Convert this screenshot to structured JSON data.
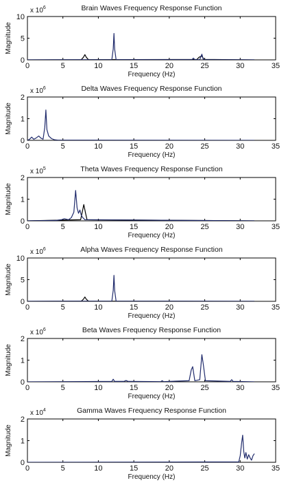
{
  "chart_data": [
    {
      "type": "line",
      "title": "Brain Waves Frequency Response Function",
      "xlabel": "Frequency (Hz)",
      "ylabel": "Magnitude",
      "exponent_base": "x 10",
      "exponent_power": "6",
      "xlim": [
        0,
        35
      ],
      "ylim": [
        0,
        10
      ],
      "xticks": [
        0,
        5,
        10,
        15,
        20,
        25,
        30,
        35
      ],
      "yticks": [
        0,
        5,
        10
      ],
      "grid": false,
      "series": [
        {
          "color": "#000000",
          "x": [
            0,
            7.6,
            7.9,
            8.1,
            8.3,
            8.6,
            23.9,
            24.2,
            24.6,
            24.9,
            32
          ],
          "y": [
            0,
            0.05,
            0.6,
            1.2,
            0.6,
            0.05,
            0.1,
            0.6,
            0.9,
            0.1,
            0
          ]
        },
        {
          "color": "#1f2a6b",
          "x": [
            0,
            11.9,
            12.1,
            12.2,
            12.3,
            12.5,
            23.2,
            23.4,
            23.6,
            24.3,
            24.6,
            24.8,
            32
          ],
          "y": [
            0,
            0.05,
            2.5,
            6.1,
            2.5,
            0.05,
            0.05,
            0.4,
            0.05,
            0.05,
            1.3,
            0.05,
            0
          ]
        }
      ]
    },
    {
      "type": "line",
      "title": "Delta Waves Frequency Response Function",
      "xlabel": "Frequency (Hz)",
      "ylabel": "Magnitude",
      "exponent_base": "x 10",
      "exponent_power": "6",
      "xlim": [
        0,
        35
      ],
      "ylim": [
        0,
        2
      ],
      "xticks": [
        0,
        5,
        10,
        15,
        20,
        25,
        30,
        35
      ],
      "yticks": [
        0,
        1,
        2
      ],
      "grid": false,
      "series": [
        {
          "color": "#1f2a6b",
          "x": [
            0,
            0.3,
            0.6,
            0.9,
            1.2,
            1.6,
            1.9,
            2.2,
            2.45,
            2.6,
            2.75,
            3.0,
            3.4,
            3.8,
            4.3,
            32
          ],
          "y": [
            0,
            0.05,
            0.15,
            0.05,
            0.1,
            0.2,
            0.1,
            0.05,
            0.6,
            1.4,
            0.5,
            0.2,
            0.08,
            0.03,
            0.01,
            0
          ]
        }
      ]
    },
    {
      "type": "line",
      "title": "Theta Waves Frequency Response Function",
      "xlabel": "Frequency (Hz)",
      "ylabel": "Magnitude",
      "exponent_base": "x 10",
      "exponent_power": "5",
      "xlim": [
        0,
        35
      ],
      "ylim": [
        0,
        2
      ],
      "xticks": [
        0,
        5,
        10,
        15,
        20,
        25,
        30,
        35
      ],
      "yticks": [
        0,
        1,
        2
      ],
      "grid": false,
      "series": [
        {
          "color": "#000000",
          "x": [
            0,
            7.5,
            7.7,
            7.95,
            8.2,
            8.4,
            32
          ],
          "y": [
            0,
            0.05,
            0.35,
            0.75,
            0.35,
            0.05,
            0
          ]
        },
        {
          "color": "#1f2a6b",
          "x": [
            0,
            4.0,
            4.8,
            5.2,
            5.8,
            6.2,
            6.55,
            6.8,
            7.0,
            7.2,
            7.4,
            7.6,
            7.8,
            8.1,
            32
          ],
          "y": [
            0,
            0.02,
            0.05,
            0.1,
            0.05,
            0.15,
            0.4,
            1.4,
            0.6,
            0.35,
            0.5,
            0.25,
            0.15,
            0.05,
            0
          ]
        }
      ]
    },
    {
      "type": "line",
      "title": "Alpha Waves Frequency Response Function",
      "xlabel": "Frequency (Hz)",
      "ylabel": "Magnitude",
      "exponent_base": "x 10",
      "exponent_power": "6",
      "xlim": [
        0,
        35
      ],
      "ylim": [
        0,
        10
      ],
      "xticks": [
        0,
        5,
        10,
        15,
        20,
        25,
        30,
        35
      ],
      "yticks": [
        0,
        5,
        10
      ],
      "grid": false,
      "series": [
        {
          "color": "#000000",
          "x": [
            0,
            7.6,
            7.9,
            8.1,
            8.3,
            8.6,
            32
          ],
          "y": [
            0,
            0.05,
            0.5,
            1.0,
            0.5,
            0.05,
            0
          ]
        },
        {
          "color": "#1f2a6b",
          "x": [
            0,
            11.9,
            12.1,
            12.2,
            12.3,
            12.5,
            32
          ],
          "y": [
            0,
            0.05,
            2.5,
            6.0,
            2.5,
            0.05,
            0
          ]
        }
      ]
    },
    {
      "type": "line",
      "title": "Beta Waves Frequency Response Function",
      "xlabel": "Frequency (Hz)",
      "ylabel": "Magnitude",
      "exponent_base": "x 10",
      "exponent_power": "6",
      "xlim": [
        0,
        35
      ],
      "ylim": [
        0,
        2
      ],
      "xticks": [
        0,
        5,
        10,
        15,
        20,
        25,
        30,
        35
      ],
      "yticks": [
        0,
        1,
        2
      ],
      "grid": false,
      "series": [
        {
          "color": "#1f2a6b",
          "x": [
            0,
            11.9,
            12.1,
            12.3,
            13.6,
            13.9,
            14.2,
            18.8,
            19.0,
            19.2,
            22.8,
            23.1,
            23.3,
            23.6,
            24.3,
            24.6,
            24.8,
            25.1,
            28.6,
            28.8,
            29.0,
            32
          ],
          "y": [
            0,
            0.02,
            0.12,
            0.02,
            0.02,
            0.06,
            0.02,
            0.01,
            0.05,
            0.01,
            0.05,
            0.55,
            0.7,
            0.05,
            0.1,
            1.25,
            0.8,
            0.05,
            0.02,
            0.1,
            0.02,
            0
          ]
        }
      ]
    },
    {
      "type": "line",
      "title": "Gamma Waves Frequency Response Function",
      "xlabel": "Frequency (Hz)",
      "ylabel": "Magnitude",
      "exponent_base": "x 10",
      "exponent_power": "4",
      "xlim": [
        0,
        35
      ],
      "ylim": [
        0,
        2
      ],
      "xticks": [
        0,
        5,
        10,
        15,
        20,
        25,
        30,
        35
      ],
      "yticks": [
        0,
        1,
        2
      ],
      "grid": false,
      "series": [
        {
          "color": "#1f2a6b",
          "x": [
            0,
            29.8,
            30.0,
            30.2,
            30.35,
            30.5,
            30.65,
            30.8,
            31.0,
            31.2,
            31.4,
            31.6,
            31.8,
            32.0
          ],
          "y": [
            0,
            0.02,
            0.3,
            0.9,
            1.25,
            0.5,
            0.2,
            0.45,
            0.15,
            0.35,
            0.2,
            0.1,
            0.3,
            0.4
          ]
        }
      ]
    }
  ]
}
